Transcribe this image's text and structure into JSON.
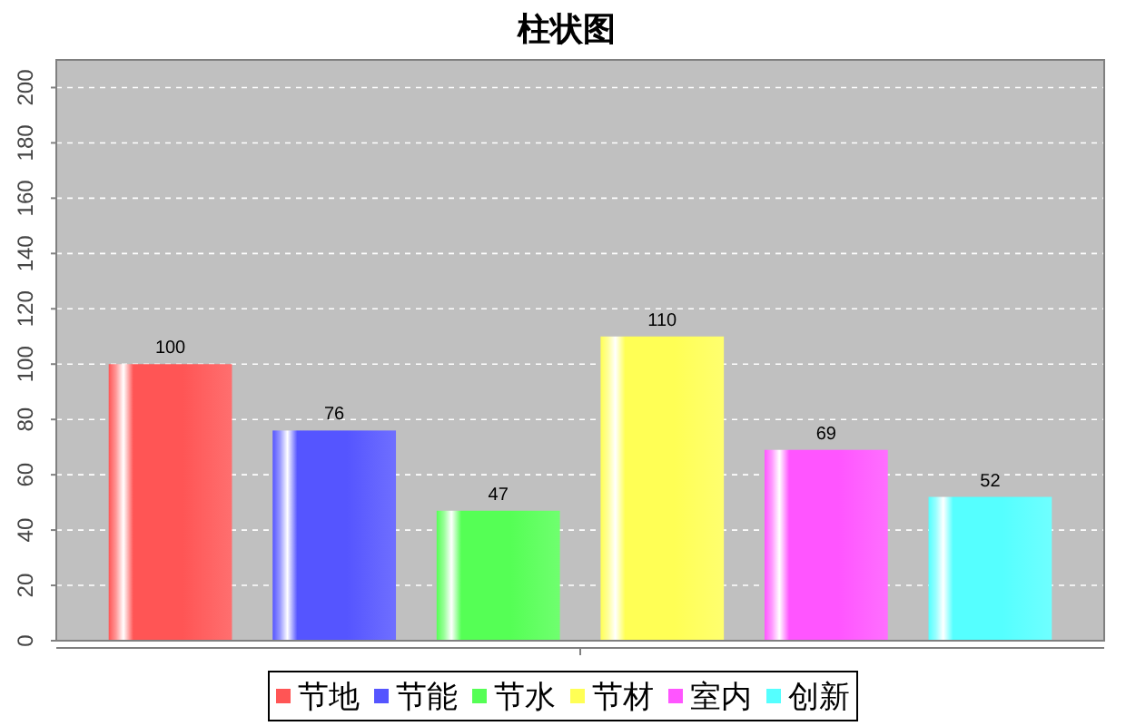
{
  "chart_data": {
    "type": "bar",
    "title": "柱状图",
    "categories": [
      null
    ],
    "series": [
      {
        "name": "节地",
        "color": "#ff5555",
        "values": [
          100
        ]
      },
      {
        "name": "节能",
        "color": "#5555ff",
        "values": [
          76
        ]
      },
      {
        "name": "节水",
        "color": "#55ff55",
        "values": [
          47
        ]
      },
      {
        "name": "节材",
        "color": "#ffff55",
        "values": [
          110
        ]
      },
      {
        "name": "室内",
        "color": "#ff55ff",
        "values": [
          69
        ]
      },
      {
        "name": "创新",
        "color": "#55ffff",
        "values": [
          52
        ]
      }
    ],
    "ylim": [
      0,
      210
    ],
    "yticks": [
      0,
      20,
      40,
      60,
      80,
      100,
      120,
      140,
      160,
      180,
      200
    ],
    "grid": "y",
    "legend": "bottom",
    "data_labels": true,
    "tick_labels": "y"
  }
}
